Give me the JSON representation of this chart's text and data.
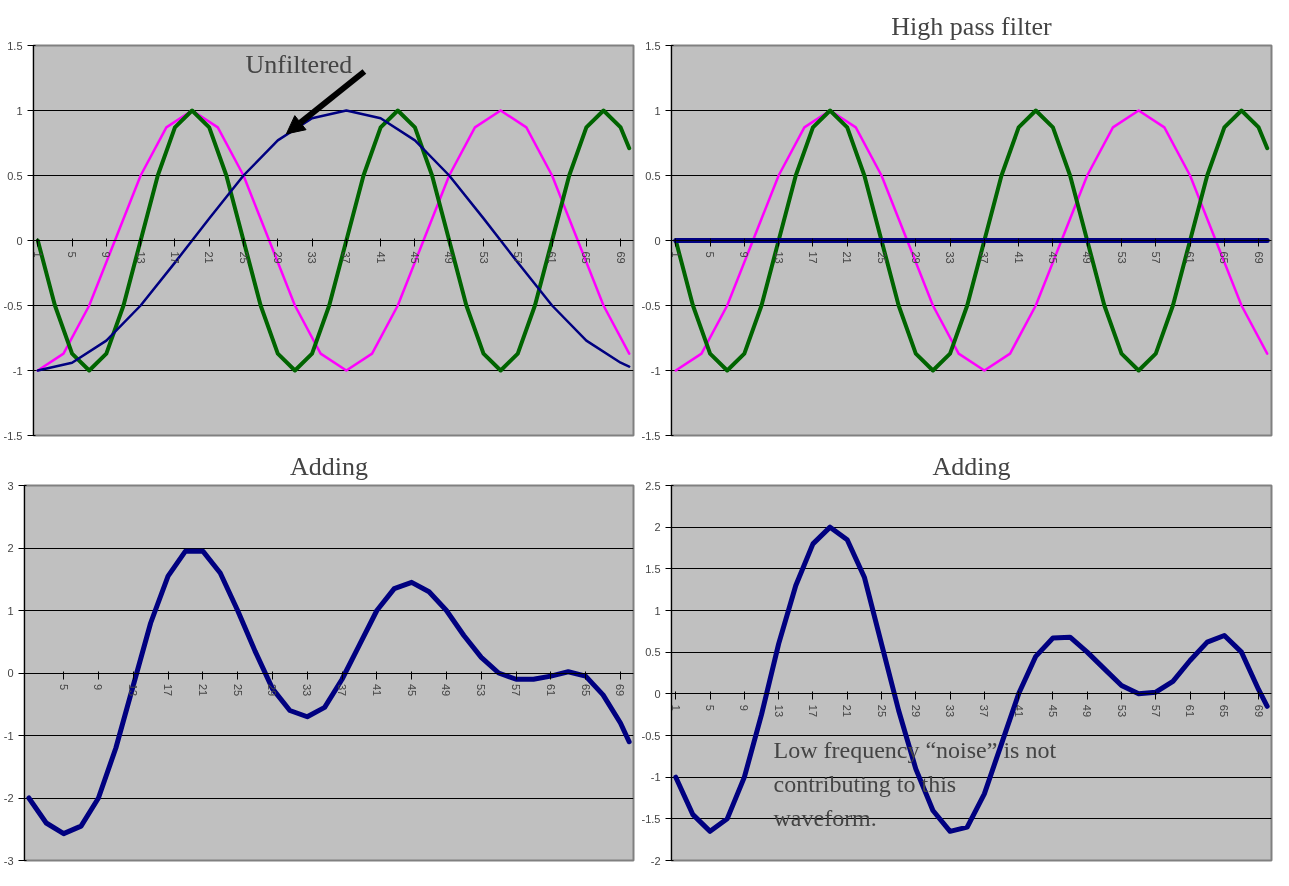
{
  "chart_data": [
    {
      "type": "line",
      "annotations": [
        {
          "text": "Unfiltered",
          "x": 30,
          "y": 0.82
        }
      ],
      "xlim": [
        0.5,
        70.5
      ],
      "ylim": [
        -1.5,
        1.5
      ],
      "xticks": [
        1,
        5,
        9,
        13,
        17,
        21,
        25,
        29,
        33,
        37,
        41,
        45,
        49,
        53,
        57,
        61,
        65,
        69
      ],
      "yticks": [
        -1.5,
        -1,
        -0.5,
        0,
        0.5,
        1,
        1.5
      ],
      "grid": "y",
      "series": [
        {
          "color": "#ff00ff",
          "x": [
            1,
            4,
            7,
            10,
            13,
            16,
            19,
            22,
            25,
            28,
            31,
            34,
            37,
            40,
            43,
            46,
            49,
            52,
            55,
            58,
            61,
            64,
            67,
            70
          ],
          "values": [
            -1,
            -0.87,
            -0.5,
            0,
            0.5,
            0.87,
            1,
            0.87,
            0.5,
            0,
            -0.5,
            -0.87,
            -1,
            -0.87,
            -0.5,
            0,
            0.5,
            0.87,
            1,
            0.87,
            0.5,
            0,
            -0.5,
            -0.87
          ]
        },
        {
          "color": "#006400",
          "x": [
            1,
            3,
            5,
            7,
            9,
            11,
            13,
            15,
            17,
            19,
            21,
            23,
            25,
            27,
            29,
            31,
            33,
            35,
            37,
            39,
            41,
            43,
            45,
            47,
            49,
            51,
            53,
            55,
            57,
            59,
            61,
            63,
            65,
            67,
            69,
            70
          ],
          "values": [
            0,
            -0.5,
            -0.87,
            -1,
            -0.87,
            -0.5,
            0,
            0.5,
            0.87,
            1,
            0.87,
            0.5,
            0,
            -0.5,
            -0.87,
            -1,
            -0.87,
            -0.5,
            0,
            0.5,
            0.87,
            1,
            0.87,
            0.5,
            0,
            -0.5,
            -0.87,
            -1,
            -0.87,
            -0.5,
            0,
            0.5,
            0.87,
            1,
            0.87,
            0.71
          ]
        },
        {
          "color": "#000080",
          "x": [
            1,
            5,
            9,
            13,
            17,
            21,
            25,
            29,
            33,
            37,
            41,
            45,
            49,
            53,
            57,
            61,
            65,
            69,
            70
          ],
          "values": [
            -1,
            -0.94,
            -0.77,
            -0.5,
            -0.17,
            0.17,
            0.5,
            0.77,
            0.94,
            1,
            0.94,
            0.77,
            0.5,
            0.17,
            -0.17,
            -0.5,
            -0.77,
            -0.94,
            -0.97
          ]
        }
      ]
    },
    {
      "type": "line",
      "title": "High pass filter",
      "xlim": [
        0.5,
        70.5
      ],
      "ylim": [
        -1.5,
        1.5
      ],
      "xticks": [
        1,
        5,
        9,
        13,
        17,
        21,
        25,
        29,
        33,
        37,
        41,
        45,
        49,
        53,
        57,
        61,
        65,
        69
      ],
      "yticks": [
        -1.5,
        -1,
        -0.5,
        0,
        0.5,
        1,
        1.5
      ],
      "grid": "y",
      "series": [
        {
          "color": "#ff00ff",
          "x": [
            1,
            4,
            7,
            10,
            13,
            16,
            19,
            22,
            25,
            28,
            31,
            34,
            37,
            40,
            43,
            46,
            49,
            52,
            55,
            58,
            61,
            64,
            67,
            70
          ],
          "values": [
            -1,
            -0.87,
            -0.5,
            0,
            0.5,
            0.87,
            1,
            0.87,
            0.5,
            0,
            -0.5,
            -0.87,
            -1,
            -0.87,
            -0.5,
            0,
            0.5,
            0.87,
            1,
            0.87,
            0.5,
            0,
            -0.5,
            -0.87
          ]
        },
        {
          "color": "#006400",
          "x": [
            1,
            3,
            5,
            7,
            9,
            11,
            13,
            15,
            17,
            19,
            21,
            23,
            25,
            27,
            29,
            31,
            33,
            35,
            37,
            39,
            41,
            43,
            45,
            47,
            49,
            51,
            53,
            55,
            57,
            59,
            61,
            63,
            65,
            67,
            69,
            70
          ],
          "values": [
            0,
            -0.5,
            -0.87,
            -1,
            -0.87,
            -0.5,
            0,
            0.5,
            0.87,
            1,
            0.87,
            0.5,
            0,
            -0.5,
            -0.87,
            -1,
            -0.87,
            -0.5,
            0,
            0.5,
            0.87,
            1,
            0.87,
            0.5,
            0,
            -0.5,
            -0.87,
            -1,
            -0.87,
            -0.5,
            0,
            0.5,
            0.87,
            1,
            0.87,
            0.71
          ]
        },
        {
          "color": "#000080",
          "x": [
            1,
            70
          ],
          "values": [
            0,
            0
          ]
        }
      ]
    },
    {
      "type": "line",
      "title": "Adding",
      "xlim": [
        0.5,
        70.5
      ],
      "ylim": [
        -3,
        3
      ],
      "xticks": [
        5,
        9,
        13,
        17,
        21,
        25,
        29,
        33,
        37,
        41,
        45,
        49,
        53,
        57,
        61,
        65,
        69
      ],
      "yticks": [
        -3,
        -2,
        -1,
        0,
        1,
        2,
        3
      ],
      "grid": "y",
      "series": [
        {
          "color": "#000080",
          "x": [
            1,
            3,
            5,
            7,
            9,
            11,
            13,
            15,
            17,
            19,
            21,
            23,
            25,
            27,
            29,
            31,
            33,
            35,
            37,
            39,
            41,
            43,
            45,
            47,
            49,
            51,
            53,
            55,
            57,
            59,
            61,
            63,
            65,
            67,
            69,
            70
          ],
          "values": [
            -2,
            -2.4,
            -2.57,
            -2.45,
            -2,
            -1.2,
            -0.2,
            0.8,
            1.55,
            1.95,
            1.95,
            1.6,
            1,
            0.35,
            -0.25,
            -0.6,
            -0.7,
            -0.55,
            -0.1,
            0.45,
            1,
            1.35,
            1.45,
            1.3,
            1,
            0.6,
            0.25,
            0,
            -0.1,
            -0.1,
            -0.05,
            0.02,
            -0.05,
            -0.35,
            -0.8,
            -1.1
          ]
        }
      ]
    },
    {
      "type": "line",
      "title": "Adding",
      "annotations": [
        "Low frequency “noise” is not contributing to this waveform."
      ],
      "xlim": [
        0.5,
        70.5
      ],
      "ylim": [
        -2,
        2.5
      ],
      "xticks": [
        1,
        5,
        9,
        13,
        17,
        21,
        25,
        29,
        33,
        37,
        41,
        45,
        49,
        53,
        57,
        61,
        65,
        69
      ],
      "yticks": [
        -2,
        -1.5,
        -1,
        -0.5,
        0,
        0.5,
        1,
        1.5,
        2,
        2.5
      ],
      "grid": "y",
      "series": [
        {
          "color": "#000080",
          "x": [
            1,
            3,
            5,
            7,
            9,
            11,
            13,
            15,
            17,
            19,
            21,
            23,
            25,
            27,
            29,
            31,
            33,
            35,
            37,
            39,
            41,
            43,
            45,
            47,
            49,
            51,
            53,
            55,
            57,
            59,
            61,
            63,
            65,
            67,
            69,
            70
          ],
          "values": [
            -1,
            -1.45,
            -1.65,
            -1.5,
            -1,
            -0.25,
            0.6,
            1.3,
            1.8,
            2,
            1.85,
            1.4,
            0.6,
            -0.2,
            -0.9,
            -1.4,
            -1.65,
            -1.6,
            -1.2,
            -0.6,
            0,
            0.45,
            0.67,
            0.68,
            0.5,
            0.3,
            0.1,
            0,
            0.02,
            0.15,
            0.4,
            0.62,
            0.7,
            0.5,
            0.05,
            -0.15
          ]
        }
      ]
    }
  ]
}
